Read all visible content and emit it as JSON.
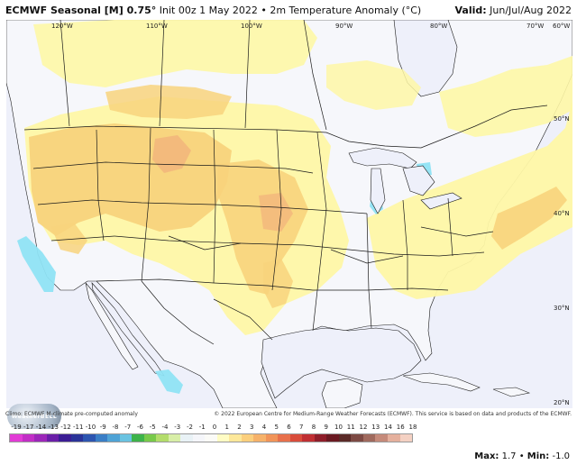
{
  "header": {
    "model": "ECMWF Seasonal [M] 0.75°",
    "init": "Init 00z 1 May 2022",
    "separator": "•",
    "variable": "2m Temperature Anomaly (°C)",
    "valid_label": "Valid:",
    "valid_value": "Jun/Jul/Aug 2022"
  },
  "map_labels": {
    "lon": [
      "120°W",
      "110°W",
      "100°W",
      "90°W",
      "80°W",
      "70°W",
      "60°W"
    ],
    "lat": [
      "50°N",
      "40°N",
      "30°N",
      "20°N"
    ]
  },
  "credits": {
    "climo": "Climo: ECMWF M-climate pre-computed anomaly",
    "copyright": "© 2022 European Centre for Medium-Range Weather Forecasts (ECMWF). This service is based on data and products of the ECMWF."
  },
  "logo_text": "WeatherBELL",
  "scale": {
    "labels": [
      "-19",
      "-17",
      "-14",
      "-13",
      "-12",
      "-11",
      "-10",
      "-9",
      "-8",
      "-7",
      "-6",
      "-5",
      "-4",
      "-3",
      "-2",
      "-1",
      "0",
      "1",
      "2",
      "3",
      "4",
      "5",
      "6",
      "7",
      "8",
      "9",
      "10",
      "11",
      "12",
      "13",
      "14",
      "16",
      "18"
    ],
    "colors": [
      "#e23bd6",
      "#c22fc6",
      "#9c27b9",
      "#6a1fa8",
      "#3b1d94",
      "#2a3398",
      "#2d55b0",
      "#3a7ec6",
      "#4fa3d6",
      "#6ac3e1",
      "#3db34a",
      "#78c94a",
      "#b3dc6b",
      "#d8eea7",
      "#e9f2f6",
      "#f5f6fa",
      "#fbfbf7",
      "#fffcc4",
      "#fde89a",
      "#fbcf7d",
      "#f6b26a",
      "#f19459",
      "#e8704b",
      "#d94c3b",
      "#c02f33",
      "#8f1e2a",
      "#6b1a22",
      "#5a2a27",
      "#7d4a44",
      "#a06a5e",
      "#c58a7a",
      "#e5b09d",
      "#f4d1c3"
    ]
  },
  "stats": {
    "max_label": "Max:",
    "max_value": "1.7",
    "separator": "•",
    "min_label": "Min:",
    "min_value": "-1.0"
  },
  "colors": {
    "ocean": "#eef0fa",
    "land_base": "#f6f7fb",
    "anom_light": "#fef7a6",
    "anom_mid": "#f8d37c",
    "anom_strong": "#f2b77c",
    "anom_cool": "#8fe3f4",
    "borders": "#1a1a1a"
  }
}
